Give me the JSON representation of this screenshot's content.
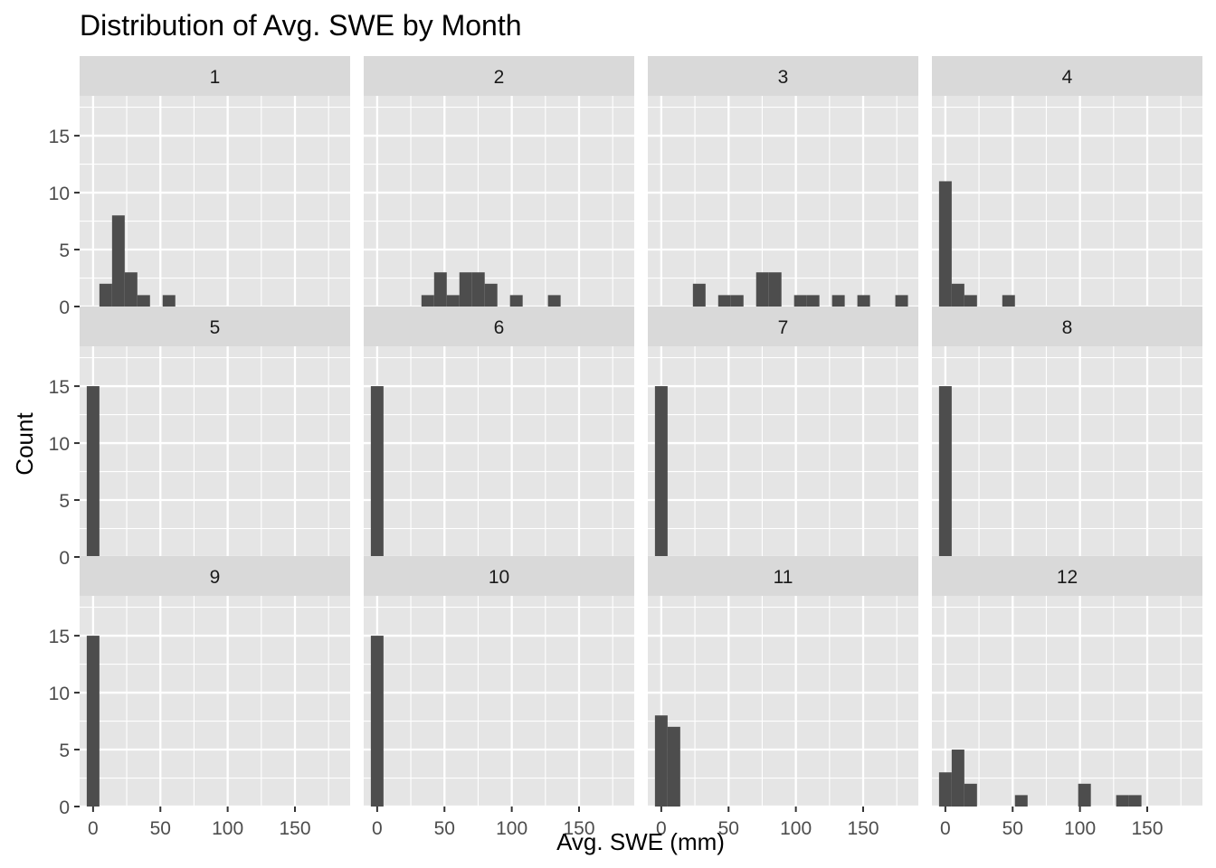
{
  "chart_data": {
    "type": "bar",
    "subtype": "histogram-facets",
    "title": "Distribution of Avg. SWE by Month",
    "xlabel": "Avg. SWE (mm)",
    "ylabel": "Count",
    "xlim": [
      -10,
      191
    ],
    "ylim": [
      0,
      18.5
    ],
    "xticks": [
      0,
      50,
      100,
      150
    ],
    "yticks": [
      0,
      5,
      10,
      15
    ],
    "bin_width": 9.4,
    "grid": true,
    "legend": "none",
    "colors": {
      "panel_bg": "#e5e5e5",
      "strip_bg": "#d9d9d9",
      "bar": "#4d4d4d",
      "grid": "#ffffff"
    },
    "facets": [
      {
        "label": "1",
        "bins": [
          {
            "x": 9.4,
            "count": 2
          },
          {
            "x": 18.8,
            "count": 8
          },
          {
            "x": 28.2,
            "count": 3
          },
          {
            "x": 37.6,
            "count": 1
          },
          {
            "x": 56.4,
            "count": 1
          }
        ]
      },
      {
        "label": "2",
        "bins": [
          {
            "x": 37.6,
            "count": 1
          },
          {
            "x": 47.0,
            "count": 3
          },
          {
            "x": 56.4,
            "count": 1
          },
          {
            "x": 65.8,
            "count": 3
          },
          {
            "x": 75.2,
            "count": 3
          },
          {
            "x": 84.6,
            "count": 2
          },
          {
            "x": 103.4,
            "count": 1
          },
          {
            "x": 131.6,
            "count": 1
          }
        ]
      },
      {
        "label": "3",
        "bins": [
          {
            "x": 28.2,
            "count": 2
          },
          {
            "x": 47.0,
            "count": 1
          },
          {
            "x": 56.4,
            "count": 1
          },
          {
            "x": 75.2,
            "count": 3
          },
          {
            "x": 84.6,
            "count": 3
          },
          {
            "x": 103.4,
            "count": 1
          },
          {
            "x": 112.8,
            "count": 1
          },
          {
            "x": 131.6,
            "count": 1
          },
          {
            "x": 150.4,
            "count": 1
          },
          {
            "x": 178.6,
            "count": 1
          }
        ]
      },
      {
        "label": "4",
        "bins": [
          {
            "x": 0,
            "count": 11
          },
          {
            "x": 9.4,
            "count": 2
          },
          {
            "x": 18.8,
            "count": 1
          },
          {
            "x": 47.0,
            "count": 1
          }
        ]
      },
      {
        "label": "5",
        "bins": [
          {
            "x": 0,
            "count": 15
          }
        ]
      },
      {
        "label": "6",
        "bins": [
          {
            "x": 0,
            "count": 15
          }
        ]
      },
      {
        "label": "7",
        "bins": [
          {
            "x": 0,
            "count": 15
          }
        ]
      },
      {
        "label": "8",
        "bins": [
          {
            "x": 0,
            "count": 15
          }
        ]
      },
      {
        "label": "9",
        "bins": [
          {
            "x": 0,
            "count": 15
          }
        ]
      },
      {
        "label": "10",
        "bins": [
          {
            "x": 0,
            "count": 15
          }
        ]
      },
      {
        "label": "11",
        "bins": [
          {
            "x": 0,
            "count": 8
          },
          {
            "x": 9.4,
            "count": 7
          }
        ]
      },
      {
        "label": "12",
        "bins": [
          {
            "x": 0,
            "count": 3
          },
          {
            "x": 9.4,
            "count": 5
          },
          {
            "x": 18.8,
            "count": 2
          },
          {
            "x": 56.4,
            "count": 1
          },
          {
            "x": 103.4,
            "count": 2
          },
          {
            "x": 131.6,
            "count": 1
          },
          {
            "x": 141.0,
            "count": 1
          }
        ]
      }
    ]
  }
}
